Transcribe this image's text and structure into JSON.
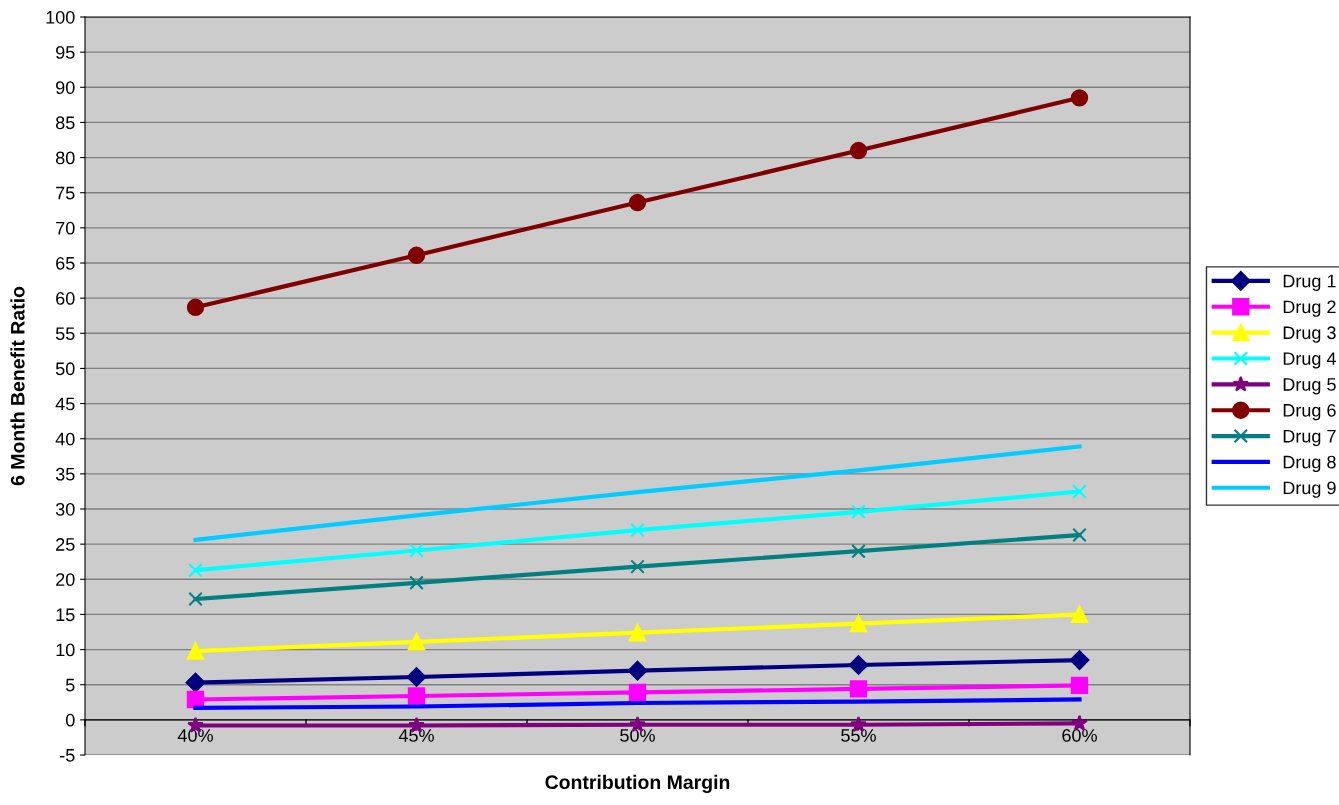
{
  "chart_data": {
    "type": "line",
    "xlabel": "Contribution Margin",
    "ylabel": "6 Month Benefit Ratio",
    "categories": [
      "40%",
      "45%",
      "50%",
      "55%",
      "60%"
    ],
    "ylim": [
      -5,
      100
    ],
    "yticks": [
      -5,
      0,
      5,
      10,
      15,
      20,
      25,
      30,
      35,
      40,
      45,
      50,
      55,
      60,
      65,
      70,
      75,
      80,
      85,
      90,
      95,
      100
    ],
    "grid": "y",
    "legend": "right",
    "line_style": "solid",
    "series": [
      {
        "name": "Drug 1",
        "color": "#000080",
        "marker": "diamond",
        "values": [
          5.3,
          6.1,
          7.0,
          7.8,
          8.5
        ]
      },
      {
        "name": "Drug 2",
        "color": "#ff00ff",
        "marker": "square",
        "values": [
          2.9,
          3.4,
          3.9,
          4.4,
          4.9
        ]
      },
      {
        "name": "Drug 3",
        "color": "#ffff00",
        "marker": "triangle",
        "values": [
          9.8,
          11.1,
          12.4,
          13.7,
          15.0
        ]
      },
      {
        "name": "Drug 4",
        "color": "#00ffff",
        "marker": "cross",
        "values": [
          21.3,
          24.1,
          27.0,
          29.6,
          32.5
        ]
      },
      {
        "name": "Drug 5",
        "color": "#800080",
        "marker": "star",
        "values": [
          -0.8,
          -0.8,
          -0.7,
          -0.7,
          -0.5
        ]
      },
      {
        "name": "Drug 6",
        "color": "#800000",
        "marker": "circle",
        "values": [
          58.7,
          66.1,
          73.6,
          81.0,
          88.5
        ]
      },
      {
        "name": "Drug 7",
        "color": "#008080",
        "marker": "cross",
        "values": [
          17.2,
          19.5,
          21.8,
          24.0,
          26.3
        ]
      },
      {
        "name": "Drug 8",
        "color": "#0000ff",
        "marker": "none",
        "values": [
          1.7,
          1.9,
          2.4,
          2.6,
          2.9
        ]
      },
      {
        "name": "Drug 9",
        "color": "#00ccff",
        "marker": "none",
        "values": [
          25.6,
          29.1,
          32.4,
          35.5,
          38.9
        ]
      }
    ]
  }
}
